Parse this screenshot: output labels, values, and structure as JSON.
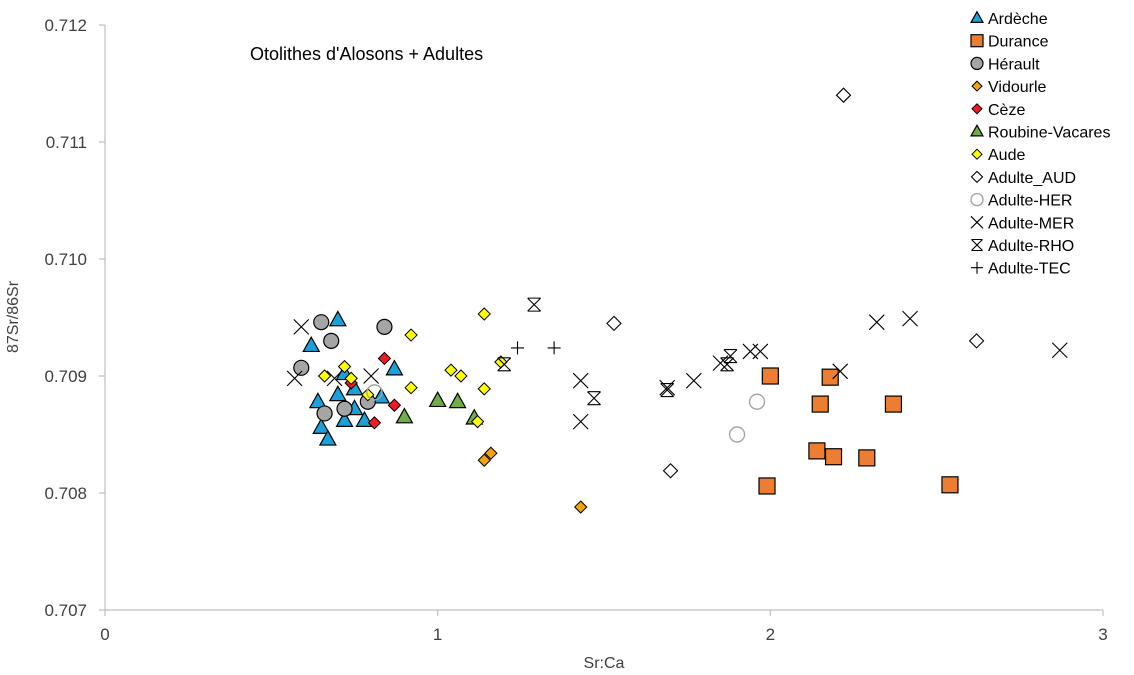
{
  "chart_data": {
    "type": "scatter",
    "title": "Otolithes d'Alosons + Adultes",
    "xlabel": "Sr:Ca",
    "ylabel": "87Sr/86Sr",
    "xlim": [
      0,
      3
    ],
    "ylim": [
      0.707,
      0.712
    ],
    "x_ticks": [
      "0",
      "1",
      "2",
      "3"
    ],
    "y_ticks": [
      "0.707",
      "0.708",
      "0.709",
      "0.710",
      "0.711",
      "0.712"
    ],
    "grid": false,
    "legend_position": "top-right",
    "series": [
      {
        "name": "Ardèche",
        "marker": "triangle",
        "color": "#1ba1d9",
        "points": [
          [
            0.7,
            0.70948
          ],
          [
            0.62,
            0.70926
          ],
          [
            0.72,
            0.70902
          ],
          [
            0.87,
            0.70906
          ],
          [
            0.75,
            0.70889
          ],
          [
            0.7,
            0.70884
          ],
          [
            0.64,
            0.70878
          ],
          [
            0.75,
            0.70872
          ],
          [
            0.83,
            0.70882
          ],
          [
            0.72,
            0.70862
          ],
          [
            0.78,
            0.70862
          ],
          [
            0.65,
            0.70856
          ],
          [
            0.67,
            0.70846
          ]
        ]
      },
      {
        "name": "Durance",
        "marker": "square",
        "color": "#ed7d31",
        "points": [
          [
            2.0,
            0.709
          ],
          [
            2.18,
            0.70899
          ],
          [
            2.15,
            0.70876
          ],
          [
            2.37,
            0.70876
          ],
          [
            2.14,
            0.70836
          ],
          [
            2.19,
            0.70831
          ],
          [
            2.29,
            0.7083
          ],
          [
            1.99,
            0.70806
          ],
          [
            2.54,
            0.70807
          ]
        ]
      },
      {
        "name": "Hérault",
        "marker": "circle",
        "color": "#a5a5a5",
        "points": [
          [
            0.65,
            0.70946
          ],
          [
            0.84,
            0.70942
          ],
          [
            0.68,
            0.7093
          ],
          [
            0.59,
            0.70907
          ],
          [
            0.79,
            0.70878
          ],
          [
            0.72,
            0.70872
          ],
          [
            0.66,
            0.70868
          ]
        ]
      },
      {
        "name": "Vidourle",
        "marker": "diamond",
        "color": "#f4a30c",
        "points": [
          [
            1.16,
            0.70834
          ],
          [
            1.14,
            0.70828
          ],
          [
            1.43,
            0.70788
          ]
        ]
      },
      {
        "name": "Cèze",
        "marker": "diamond",
        "color": "#ef1c25",
        "points": [
          [
            0.84,
            0.70915
          ],
          [
            0.74,
            0.70894
          ],
          [
            0.87,
            0.70875
          ],
          [
            0.81,
            0.7086
          ]
        ]
      },
      {
        "name": "Roubine-Vacares",
        "marker": "triangle",
        "color": "#70ad47",
        "points": [
          [
            1.0,
            0.70879
          ],
          [
            1.06,
            0.70878
          ],
          [
            0.9,
            0.70865
          ],
          [
            1.11,
            0.70864
          ]
        ]
      },
      {
        "name": "Aude",
        "marker": "diamond",
        "color": "#ffff00",
        "points": [
          [
            1.14,
            0.70953
          ],
          [
            0.92,
            0.70935
          ],
          [
            1.19,
            0.70912
          ],
          [
            0.72,
            0.70908
          ],
          [
            1.04,
            0.70905
          ],
          [
            1.07,
            0.709
          ],
          [
            0.66,
            0.709
          ],
          [
            0.74,
            0.70898
          ],
          [
            0.92,
            0.7089
          ],
          [
            1.14,
            0.70889
          ],
          [
            0.79,
            0.70884
          ],
          [
            1.12,
            0.70861
          ]
        ]
      },
      {
        "name": "Adulte_AUD",
        "marker": "open-diamond",
        "color": "#000000",
        "points": [
          [
            2.22,
            0.7114
          ],
          [
            1.53,
            0.70945
          ],
          [
            2.62,
            0.7093
          ],
          [
            1.7,
            0.70819
          ]
        ]
      },
      {
        "name": "Adulte-HER",
        "marker": "open-circle",
        "color": "#a5a5a5",
        "points": [
          [
            0.81,
            0.70886
          ],
          [
            1.96,
            0.70878
          ],
          [
            1.9,
            0.7085
          ]
        ]
      },
      {
        "name": "Adulte-MER",
        "marker": "x",
        "color": "#000000",
        "points": [
          [
            0.59,
            0.70942
          ],
          [
            2.32,
            0.70946
          ],
          [
            2.42,
            0.70949
          ],
          [
            2.87,
            0.70922
          ],
          [
            0.57,
            0.70898
          ],
          [
            0.69,
            0.70898
          ],
          [
            0.8,
            0.709
          ],
          [
            1.43,
            0.70896
          ],
          [
            1.77,
            0.70896
          ],
          [
            1.69,
            0.7089
          ],
          [
            1.85,
            0.70911
          ],
          [
            1.94,
            0.70921
          ],
          [
            1.97,
            0.70921
          ],
          [
            2.21,
            0.70904
          ],
          [
            1.43,
            0.70861
          ]
        ]
      },
      {
        "name": "Adulte-RHO",
        "marker": "asterisk",
        "color": "#000000",
        "points": [
          [
            1.29,
            0.70961
          ],
          [
            1.2,
            0.7091
          ],
          [
            1.87,
            0.7091
          ],
          [
            1.88,
            0.70917
          ],
          [
            1.69,
            0.70888
          ],
          [
            1.47,
            0.70881
          ]
        ]
      },
      {
        "name": "Adulte-TEC",
        "marker": "plus",
        "color": "#000000",
        "points": [
          [
            1.24,
            0.70924
          ],
          [
            1.35,
            0.70924
          ]
        ]
      }
    ]
  }
}
